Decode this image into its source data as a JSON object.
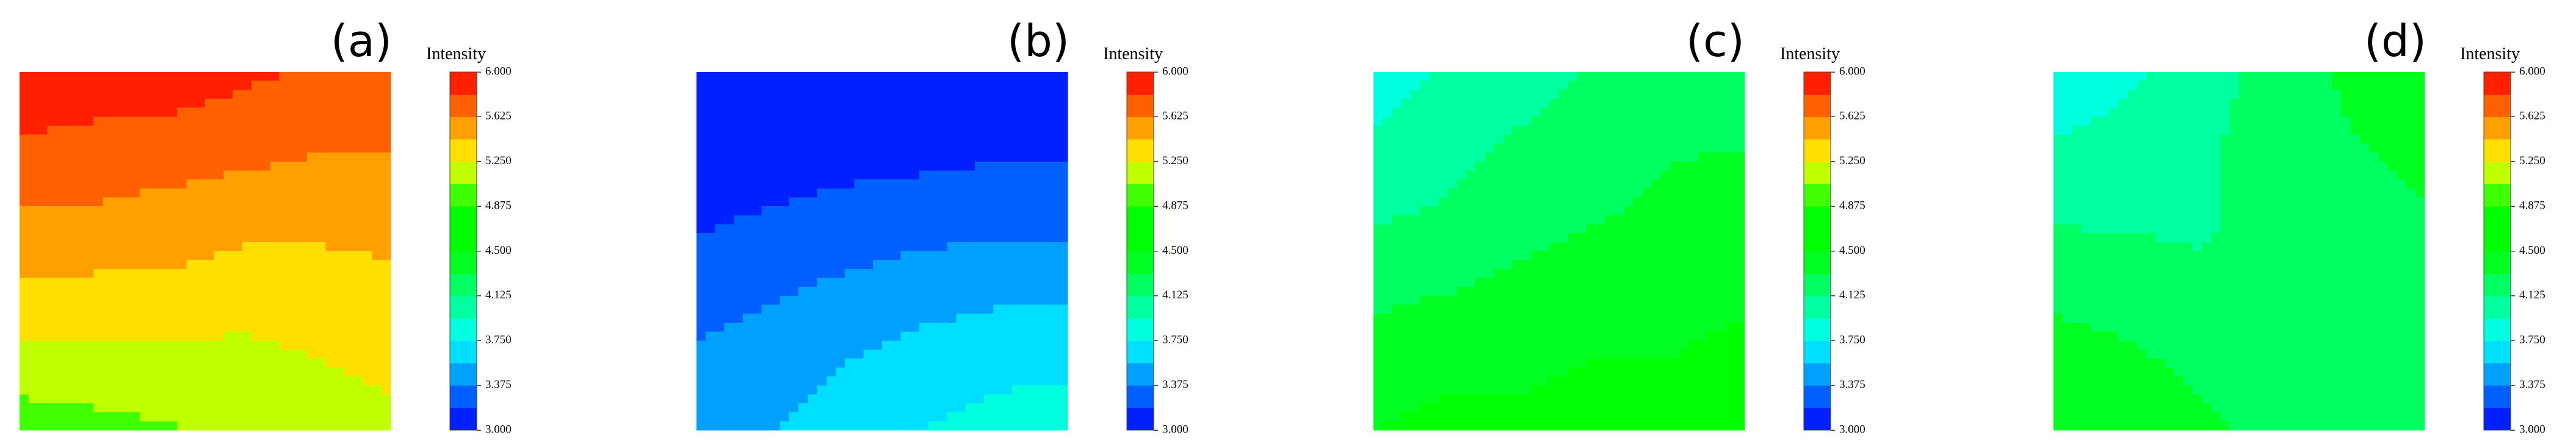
{
  "chart_data": [
    {
      "type": "contour",
      "label": "(a)",
      "colorbar_label": "Intensity",
      "clim": [
        3,
        6
      ],
      "levels": 16,
      "colormap": [
        "#0000ff",
        "#0080ff",
        "#00ffff",
        "#00ff80",
        "#00ff00",
        "#00ff00",
        "#ffff00",
        "#ff8000",
        "#ff0000"
      ],
      "cticks": [
        {
          "value": 3,
          "label": "3.000"
        },
        {
          "value": 3.375,
          "label": "3.375"
        },
        {
          "value": 3.75,
          "label": "3.750"
        },
        {
          "value": 4.125,
          "label": "4.125"
        },
        {
          "value": 4.5,
          "label": "4.500"
        },
        {
          "value": 4.875,
          "label": "4.875"
        },
        {
          "value": 5.25,
          "label": "5.250"
        },
        {
          "value": 5.625,
          "label": "5.625"
        },
        {
          "value": 6,
          "label": "6.000"
        }
      ],
      "z": [
        [
          5.95,
          5.95,
          5.9,
          5.85,
          5.8,
          5.8
        ],
        [
          5.8,
          5.75,
          5.75,
          5.7,
          5.65,
          5.65
        ],
        [
          5.6,
          5.6,
          5.55,
          5.5,
          5.5,
          5.5
        ],
        [
          5.4,
          5.4,
          5.4,
          5.35,
          5.35,
          5.4
        ],
        [
          5.2,
          5.2,
          5.2,
          5.2,
          5.25,
          5.3
        ],
        [
          4.95,
          5.0,
          5.05,
          5.1,
          5.15,
          5.2
        ]
      ]
    },
    {
      "type": "contour",
      "label": "(b)",
      "colorbar_label": "Intensity",
      "clim": [
        3,
        6
      ],
      "levels": 16,
      "colormap": [
        "#0000ff",
        "#0080ff",
        "#00ffff",
        "#00ff80",
        "#00ff00",
        "#00ff00",
        "#ffff00",
        "#ff8000",
        "#ff0000"
      ],
      "cticks": [
        {
          "value": 3,
          "label": "3.000"
        },
        {
          "value": 3.375,
          "label": "3.375"
        },
        {
          "value": 3.75,
          "label": "3.750"
        },
        {
          "value": 4.125,
          "label": "4.125"
        },
        {
          "value": 4.5,
          "label": "4.500"
        },
        {
          "value": 4.875,
          "label": "4.875"
        },
        {
          "value": 5.25,
          "label": "5.250"
        },
        {
          "value": 5.625,
          "label": "5.625"
        },
        {
          "value": 6,
          "label": "6.000"
        }
      ],
      "z": [
        [
          3.0,
          3.0,
          3.0,
          3.0,
          3.0,
          3.0
        ],
        [
          3.05,
          3.05,
          3.1,
          3.1,
          3.15,
          3.15
        ],
        [
          3.15,
          3.2,
          3.25,
          3.3,
          3.3,
          3.3
        ],
        [
          3.3,
          3.35,
          3.4,
          3.45,
          3.5,
          3.5
        ],
        [
          3.4,
          3.45,
          3.55,
          3.65,
          3.7,
          3.7
        ],
        [
          3.5,
          3.55,
          3.65,
          3.75,
          3.8,
          3.85
        ]
      ]
    },
    {
      "type": "contour",
      "label": "(c)",
      "colorbar_label": "Intensity",
      "clim": [
        3,
        6
      ],
      "levels": 16,
      "colormap": [
        "#0000ff",
        "#0080ff",
        "#00ffff",
        "#00ff80",
        "#00ff00",
        "#00ff00",
        "#ffff00",
        "#ff8000",
        "#ff0000"
      ],
      "cticks": [
        {
          "value": 3,
          "label": "3.000"
        },
        {
          "value": 3.375,
          "label": "3.375"
        },
        {
          "value": 3.75,
          "label": "3.750"
        },
        {
          "value": 4.125,
          "label": "4.125"
        },
        {
          "value": 4.5,
          "label": "4.500"
        },
        {
          "value": 4.875,
          "label": "4.875"
        },
        {
          "value": 5.25,
          "label": "5.250"
        },
        {
          "value": 5.625,
          "label": "5.625"
        },
        {
          "value": 6,
          "label": "6.000"
        }
      ],
      "z": [
        [
          3.85,
          3.95,
          4.05,
          4.15,
          4.2,
          4.25
        ],
        [
          3.95,
          4.05,
          4.15,
          4.2,
          4.3,
          4.3
        ],
        [
          4.1,
          4.15,
          4.25,
          4.3,
          4.35,
          4.4
        ],
        [
          4.25,
          4.3,
          4.35,
          4.4,
          4.45,
          4.45
        ],
        [
          4.4,
          4.45,
          4.45,
          4.5,
          4.5,
          4.55
        ],
        [
          4.5,
          4.55,
          4.55,
          4.6,
          4.6,
          4.6
        ]
      ]
    },
    {
      "type": "contour",
      "label": "(d)",
      "colorbar_label": "Intensity",
      "clim": [
        3,
        6
      ],
      "levels": 16,
      "colormap": [
        "#0000ff",
        "#0080ff",
        "#00ffff",
        "#00ff80",
        "#00ff00",
        "#00ff00",
        "#ffff00",
        "#ff8000",
        "#ff0000"
      ],
      "cticks": [
        {
          "value": 3,
          "label": "3.000"
        },
        {
          "value": 3.375,
          "label": "3.375"
        },
        {
          "value": 3.75,
          "label": "3.750"
        },
        {
          "value": 4.125,
          "label": "4.125"
        },
        {
          "value": 4.5,
          "label": "4.500"
        },
        {
          "value": 4.875,
          "label": "4.875"
        },
        {
          "value": 5.25,
          "label": "5.250"
        },
        {
          "value": 5.625,
          "label": "5.625"
        },
        {
          "value": 6,
          "label": "6.000"
        }
      ],
      "z": [
        [
          3.8,
          3.9,
          4.05,
          4.2,
          4.35,
          4.4
        ],
        [
          3.95,
          4.0,
          4.1,
          4.2,
          4.3,
          4.35
        ],
        [
          4.1,
          4.1,
          4.1,
          4.2,
          4.25,
          4.3
        ],
        [
          4.25,
          4.2,
          4.15,
          4.15,
          4.2,
          4.25
        ],
        [
          4.4,
          4.35,
          4.25,
          4.2,
          4.2,
          4.2
        ],
        [
          4.5,
          4.45,
          4.35,
          4.25,
          4.2,
          4.15
        ]
      ]
    }
  ]
}
